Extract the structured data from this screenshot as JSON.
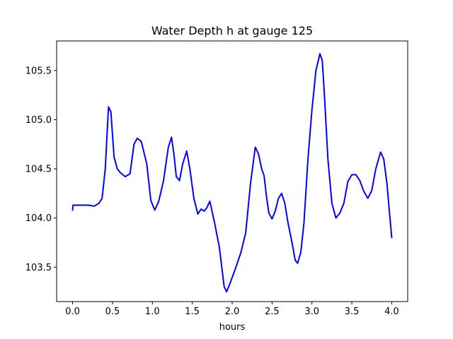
{
  "chart_data": {
    "type": "line",
    "title": "Water Depth h at gauge 125",
    "xlabel": "hours",
    "ylabel": "",
    "xlim": [
      -0.2,
      4.2
    ],
    "ylim": [
      103.15,
      105.8
    ],
    "xticks": [
      0.0,
      0.5,
      1.0,
      1.5,
      2.0,
      2.5,
      3.0,
      3.5,
      4.0
    ],
    "xtick_labels": [
      "0.0",
      "0.5",
      "1.0",
      "1.5",
      "2.0",
      "2.5",
      "3.0",
      "3.5",
      "4.0"
    ],
    "yticks": [
      103.5,
      104.0,
      104.5,
      105.0,
      105.5
    ],
    "ytick_labels": [
      "103.5",
      "104.0",
      "104.5",
      "105.0",
      "105.5"
    ],
    "grid": false,
    "series": [
      {
        "color": "#0000ff",
        "x": [
          0.0,
          0.005,
          0.1,
          0.2,
          0.27,
          0.33,
          0.37,
          0.41,
          0.45,
          0.48,
          0.52,
          0.56,
          0.6,
          0.66,
          0.72,
          0.77,
          0.81,
          0.86,
          0.93,
          0.98,
          1.03,
          1.08,
          1.14,
          1.2,
          1.24,
          1.27,
          1.3,
          1.34,
          1.38,
          1.43,
          1.47,
          1.52,
          1.57,
          1.61,
          1.65,
          1.68,
          1.72,
          1.78,
          1.84,
          1.9,
          1.93,
          1.98,
          2.03,
          2.11,
          2.17,
          2.23,
          2.29,
          2.33,
          2.37,
          2.4,
          2.43,
          2.46,
          2.5,
          2.54,
          2.58,
          2.62,
          2.66,
          2.7,
          2.75,
          2.79,
          2.82,
          2.86,
          2.9,
          2.95,
          3.0,
          3.05,
          3.1,
          3.13,
          3.16,
          3.2,
          3.25,
          3.3,
          3.35,
          3.4,
          3.45,
          3.5,
          3.55,
          3.6,
          3.65,
          3.7,
          3.75,
          3.8,
          3.86,
          3.9,
          3.94,
          3.97,
          4.0
        ],
        "values": [
          104.08,
          104.13,
          104.13,
          104.13,
          104.12,
          104.15,
          104.2,
          104.5,
          105.13,
          105.08,
          104.62,
          104.5,
          104.46,
          104.42,
          104.45,
          104.75,
          104.81,
          104.78,
          104.55,
          104.18,
          104.08,
          104.17,
          104.38,
          104.72,
          104.82,
          104.65,
          104.42,
          104.38,
          104.55,
          104.68,
          104.5,
          104.2,
          104.04,
          104.09,
          104.07,
          104.1,
          104.17,
          103.95,
          103.7,
          103.3,
          103.25,
          103.35,
          103.46,
          103.65,
          103.85,
          104.35,
          104.72,
          104.65,
          104.5,
          104.43,
          104.22,
          104.05,
          103.99,
          104.07,
          104.2,
          104.25,
          104.15,
          103.95,
          103.75,
          103.57,
          103.54,
          103.65,
          103.95,
          104.6,
          105.1,
          105.5,
          105.67,
          105.6,
          105.2,
          104.6,
          104.15,
          104.0,
          104.05,
          104.15,
          104.37,
          104.44,
          104.44,
          104.38,
          104.27,
          104.2,
          104.28,
          104.5,
          104.67,
          104.6,
          104.35,
          104.07,
          103.8
        ]
      }
    ]
  }
}
